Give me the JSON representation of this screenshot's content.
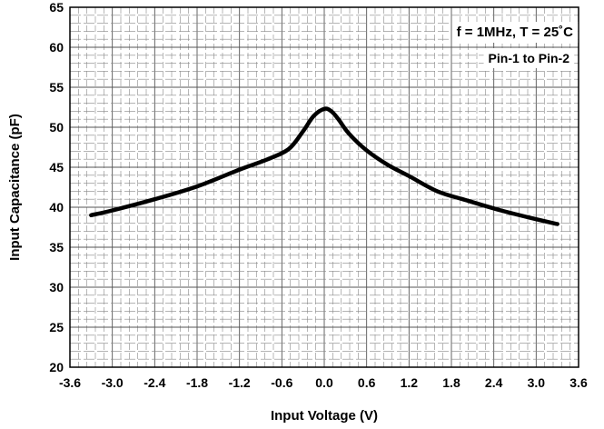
{
  "chart_data": {
    "type": "line",
    "title": "",
    "xlabel": "Input Voltage (V)",
    "ylabel": "Input Capacitance (pF)",
    "xlim": [
      -3.6,
      3.6
    ],
    "ylim": [
      20,
      65
    ],
    "xticks": [
      "-3.6",
      "-3.0",
      "-2.4",
      "-1.8",
      "-1.2",
      "-0.6",
      "0.0",
      "0.6",
      "1.2",
      "1.8",
      "2.4",
      "3.0",
      "3.6"
    ],
    "yticks": [
      "20",
      "25",
      "30",
      "35",
      "40",
      "45",
      "50",
      "55",
      "60",
      "65"
    ],
    "grid": true,
    "annotations": [
      "f = 1MHz, T = 25˚C",
      "Pin-1 to Pin-2"
    ],
    "series": [
      {
        "x": [
          -3.3,
          -3.0,
          -2.4,
          -1.8,
          -1.2,
          -0.8,
          -0.5,
          -0.3,
          -0.15,
          0.0,
          0.1,
          0.2,
          0.35,
          0.6,
          0.9,
          1.2,
          1.6,
          2.0,
          2.5,
          3.0,
          3.3
        ],
        "values": [
          39.0,
          39.6,
          41.0,
          42.6,
          44.7,
          46.0,
          47.3,
          49.5,
          51.4,
          52.3,
          52.0,
          51.0,
          49.2,
          47.1,
          45.3,
          43.9,
          42.0,
          40.9,
          39.6,
          38.5,
          37.9
        ]
      }
    ]
  }
}
